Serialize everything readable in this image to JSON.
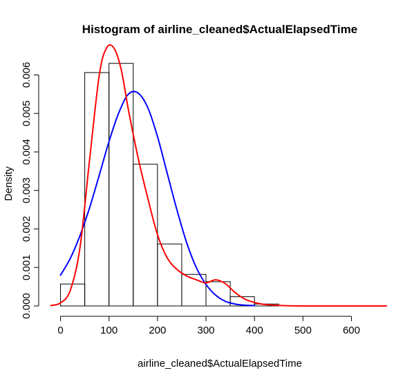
{
  "chart_data": {
    "type": "bar",
    "title": "Histogram of airline_cleaned$ActualElapsedTime",
    "xlabel": "airline_cleaned$ActualElapsedTime",
    "ylabel": "Density",
    "xlim": [
      -25,
      672
    ],
    "ylim": [
      0,
      0.0066
    ],
    "x_ticks": [
      0,
      100,
      200,
      300,
      400,
      500,
      600
    ],
    "x_tick_labels": [
      "0",
      "100",
      "200",
      "300",
      "400",
      "500",
      "600"
    ],
    "y_ticks": [
      0,
      0.001,
      0.002,
      0.003,
      0.004,
      0.005,
      0.006
    ],
    "y_tick_labels": [
      "0.000",
      "0.001",
      "0.002",
      "0.003",
      "0.004",
      "0.005",
      "0.006"
    ],
    "bins": [
      {
        "x0": 0,
        "x1": 50,
        "density": 0.00057
      },
      {
        "x0": 50,
        "x1": 100,
        "density": 0.00606
      },
      {
        "x0": 100,
        "x1": 150,
        "density": 0.0063
      },
      {
        "x0": 150,
        "x1": 200,
        "density": 0.00368
      },
      {
        "x0": 200,
        "x1": 250,
        "density": 0.00161
      },
      {
        "x0": 250,
        "x1": 300,
        "density": 0.00082
      },
      {
        "x0": 300,
        "x1": 350,
        "density": 0.00063
      },
      {
        "x0": 350,
        "x1": 400,
        "density": 0.00024
      },
      {
        "x0": 400,
        "x1": 450,
        "density": 5e-05
      }
    ],
    "curves": [
      {
        "color": "#0000ff",
        "x": [
          0,
          20,
          40,
          60,
          80,
          100,
          120,
          140,
          160,
          180,
          200,
          220,
          240,
          260,
          280,
          300,
          320,
          340,
          360,
          380,
          400
        ],
        "y": [
          0.0008,
          0.00123,
          0.00182,
          0.00255,
          0.0034,
          0.00427,
          0.00501,
          0.0055,
          0.00553,
          0.00515,
          0.0044,
          0.00345,
          0.0025,
          0.00165,
          0.001,
          0.00056,
          0.00028,
          0.00012,
          5e-05,
          2e-05,
          1e-05
        ]
      },
      {
        "color": "#ff0000",
        "x": [
          -20,
          0,
          20,
          40,
          60,
          80,
          95,
          110,
          125,
          140,
          160,
          180,
          200,
          220,
          240,
          260,
          280,
          300,
          320,
          340,
          360,
          380,
          400,
          420,
          440,
          460,
          500,
          550,
          600,
          672
        ],
        "y": [
          1e-05,
          8e-05,
          0.0004,
          0.0015,
          0.0038,
          0.006,
          0.0067,
          0.0067,
          0.00615,
          0.0051,
          0.00385,
          0.0028,
          0.00185,
          0.00125,
          0.00095,
          0.00078,
          0.00068,
          0.0006,
          0.00068,
          0.00058,
          0.00035,
          0.00018,
          9e-05,
          4e-05,
          2e-05,
          1e-05,
          0.0,
          0.0,
          0.0,
          0.0
        ]
      }
    ]
  }
}
